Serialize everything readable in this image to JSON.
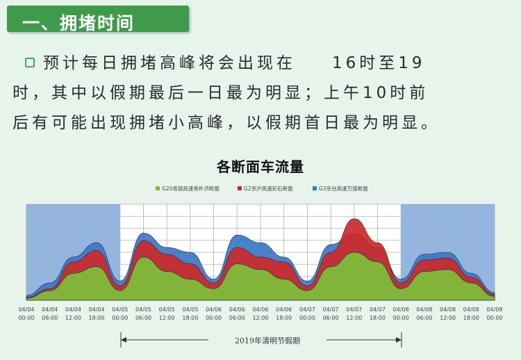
{
  "header": {
    "title": "一、拥堵时间"
  },
  "paragraph": {
    "line1_a": "预计每日拥堵高峰将会出现在",
    "line1_b": "16时至19",
    "line2": "时，其中以假期最后一日最为明显；上午10时前",
    "line3": "后有可能出现拥堵小高峰，以假期首日最为明显。"
  },
  "chart_data": {
    "type": "area",
    "title": "各断面车流量",
    "legend_position": "top",
    "grid": true,
    "x": [
      "04/04 00:00",
      "04/04 06:00",
      "04/04 12:00",
      "04/04 18:00",
      "04/05 00:00",
      "04/05 06:00",
      "04/05 12:00",
      "04/05 18:00",
      "04/06 00:00",
      "04/06 06:00",
      "04/06 12:00",
      "04/06 18:00",
      "04/07 00:00",
      "04/07 06:00",
      "04/07 12:00",
      "04/07 18:00",
      "04/08 00:00",
      "04/08 06:00",
      "04/08 12:00",
      "04/08 18:00",
      "04/09 00:00"
    ],
    "tick_labels": [
      [
        "04/04",
        "00:00"
      ],
      [
        "04/04",
        "06:00"
      ],
      [
        "04/04",
        "12:00"
      ],
      [
        "04/04",
        "18:00"
      ],
      [
        "04/05",
        "00:00"
      ],
      [
        "04/05",
        "06:00"
      ],
      [
        "04/05",
        "12:00"
      ],
      [
        "04/05",
        "18:00"
      ],
      [
        "04/06",
        "00:00"
      ],
      [
        "04/06",
        "06:00"
      ],
      [
        "04/06",
        "12:00"
      ],
      [
        "04/06",
        "18:00"
      ],
      [
        "04/07",
        "00:00"
      ],
      [
        "04/07",
        "06:00"
      ],
      [
        "04/07",
        "12:00"
      ],
      [
        "04/07",
        "18:00"
      ],
      [
        "04/08",
        "00:00"
      ],
      [
        "04/08",
        "06:00"
      ],
      [
        "04/08",
        "12:00"
      ],
      [
        "04/08",
        "18:00"
      ],
      [
        "04/09",
        "00:00"
      ]
    ],
    "ylim": [
      0,
      100
    ],
    "series": [
      {
        "name": "G3京台高速万德断面",
        "color": "#3a78c8",
        "values": [
          5,
          18,
          45,
          60,
          20,
          70,
          55,
          50,
          22,
          68,
          60,
          45,
          20,
          58,
          70,
          55,
          22,
          48,
          50,
          28,
          8
        ]
      },
      {
        "name": "G2京沪高速彩石断面",
        "color": "#cc2a2a",
        "values": [
          3,
          12,
          40,
          52,
          15,
          62,
          48,
          38,
          18,
          55,
          45,
          40,
          15,
          50,
          85,
          60,
          18,
          42,
          44,
          24,
          6
        ]
      },
      {
        "name": "G20青银高速青朴济断面",
        "color": "#7cbf3a",
        "values": [
          2,
          10,
          28,
          35,
          10,
          45,
          30,
          22,
          12,
          38,
          32,
          22,
          10,
          35,
          50,
          40,
          12,
          30,
          32,
          18,
          4
        ]
      }
    ],
    "annotation": "2019年清明节假期",
    "holiday_range": [
      "04/05 00:00",
      "04/08 00:00"
    ]
  }
}
